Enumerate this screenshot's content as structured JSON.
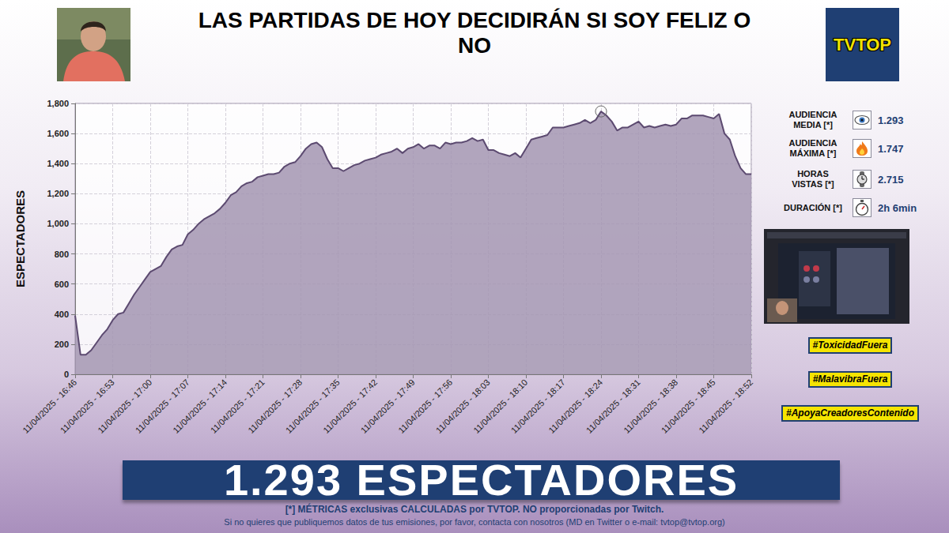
{
  "header": {
    "logo": "TVTOP"
  },
  "chart_data": {
    "type": "area",
    "title": "LAS PARTIDAS DE HOY DECIDIRÁN SI SOY FELIZ O NO",
    "y_label": "ESPECTADORES",
    "color": "#5c4a70",
    "grid": true,
    "ylim": [
      0,
      1800
    ],
    "yticks": [
      0,
      200,
      400,
      600,
      800,
      1000,
      1200,
      1400,
      1600,
      1800
    ],
    "categories": [
      "11/04/2025 - 16:46",
      null,
      null,
      null,
      null,
      null,
      null,
      "11/04/2025 - 16:53",
      null,
      null,
      null,
      null,
      null,
      null,
      "11/04/2025 - 17:00",
      null,
      null,
      null,
      null,
      null,
      null,
      "11/04/2025 - 17:07",
      null,
      null,
      null,
      null,
      null,
      null,
      "11/04/2025 - 17:14",
      null,
      null,
      null,
      null,
      null,
      null,
      "11/04/2025 - 17:21",
      null,
      null,
      null,
      null,
      null,
      null,
      "11/04/2025 - 17:28",
      null,
      null,
      null,
      null,
      null,
      null,
      "11/04/2025 - 17:35",
      null,
      null,
      null,
      null,
      null,
      null,
      "11/04/2025 - 17:42",
      null,
      null,
      null,
      null,
      null,
      null,
      "11/04/2025 - 17:49",
      null,
      null,
      null,
      null,
      null,
      null,
      "11/04/2025 - 17:56",
      null,
      null,
      null,
      null,
      null,
      null,
      "11/04/2025 - 18:03",
      null,
      null,
      null,
      null,
      null,
      null,
      "11/04/2025 - 18:10",
      null,
      null,
      null,
      null,
      null,
      null,
      "11/04/2025 - 18:17",
      null,
      null,
      null,
      null,
      null,
      null,
      "11/04/2025 - 18:24",
      null,
      null,
      null,
      null,
      null,
      null,
      "11/04/2025 - 18:31",
      null,
      null,
      null,
      null,
      null,
      null,
      "11/04/2025 - 18:38",
      null,
      null,
      null,
      null,
      null,
      null,
      "11/04/2025 - 18:45",
      null,
      null,
      null,
      null,
      null,
      null,
      "11/04/2025 - 18:52"
    ],
    "values": [
      390,
      130,
      130,
      160,
      210,
      260,
      300,
      360,
      400,
      410,
      470,
      530,
      580,
      630,
      680,
      700,
      720,
      780,
      830,
      850,
      860,
      930,
      960,
      1000,
      1030,
      1050,
      1070,
      1100,
      1140,
      1190,
      1210,
      1250,
      1270,
      1280,
      1310,
      1320,
      1330,
      1330,
      1340,
      1380,
      1400,
      1410,
      1450,
      1500,
      1530,
      1540,
      1510,
      1430,
      1370,
      1370,
      1350,
      1370,
      1390,
      1400,
      1420,
      1430,
      1440,
      1460,
      1470,
      1480,
      1500,
      1470,
      1500,
      1510,
      1530,
      1500,
      1520,
      1520,
      1500,
      1540,
      1530,
      1540,
      1540,
      1550,
      1570,
      1550,
      1560,
      1490,
      1490,
      1470,
      1460,
      1450,
      1470,
      1440,
      1500,
      1560,
      1570,
      1580,
      1590,
      1640,
      1640,
      1640,
      1650,
      1660,
      1670,
      1690,
      1670,
      1690,
      1747,
      1720,
      1680,
      1620,
      1640,
      1640,
      1660,
      1680,
      1640,
      1650,
      1640,
      1650,
      1660,
      1650,
      1660,
      1700,
      1700,
      1720,
      1720,
      1720,
      1710,
      1700,
      1730,
      1600,
      1560,
      1450,
      1370,
      1330,
      1330
    ]
  },
  "stats": [
    {
      "label": "AUDIENCIA MEDIA [*]",
      "value": "1.293"
    },
    {
      "label": "AUDIENCIA MÁXIMA [*]",
      "value": "1.747"
    },
    {
      "label": "HORAS VISTAS [*]",
      "value": "2.715"
    },
    {
      "label": "DURACIÓN [*]",
      "value": "2h 6min"
    }
  ],
  "hashtags": [
    "#ToxicidadFuera",
    "#MalavibraFuera",
    "#ApoyaCreadoresContenido"
  ],
  "banner": "1.293 ESPECTADORES",
  "footer": [
    "[*] MÉTRICAS exclusivas CALCULADAS por TVTOP. NO proporcionadas por Twitch.",
    "Si no quieres que publiquemos datos de tus emisiones, por favor, contacta con nosotros (MD en Twitter o e-mail: tvtop@tvtop.org)"
  ]
}
